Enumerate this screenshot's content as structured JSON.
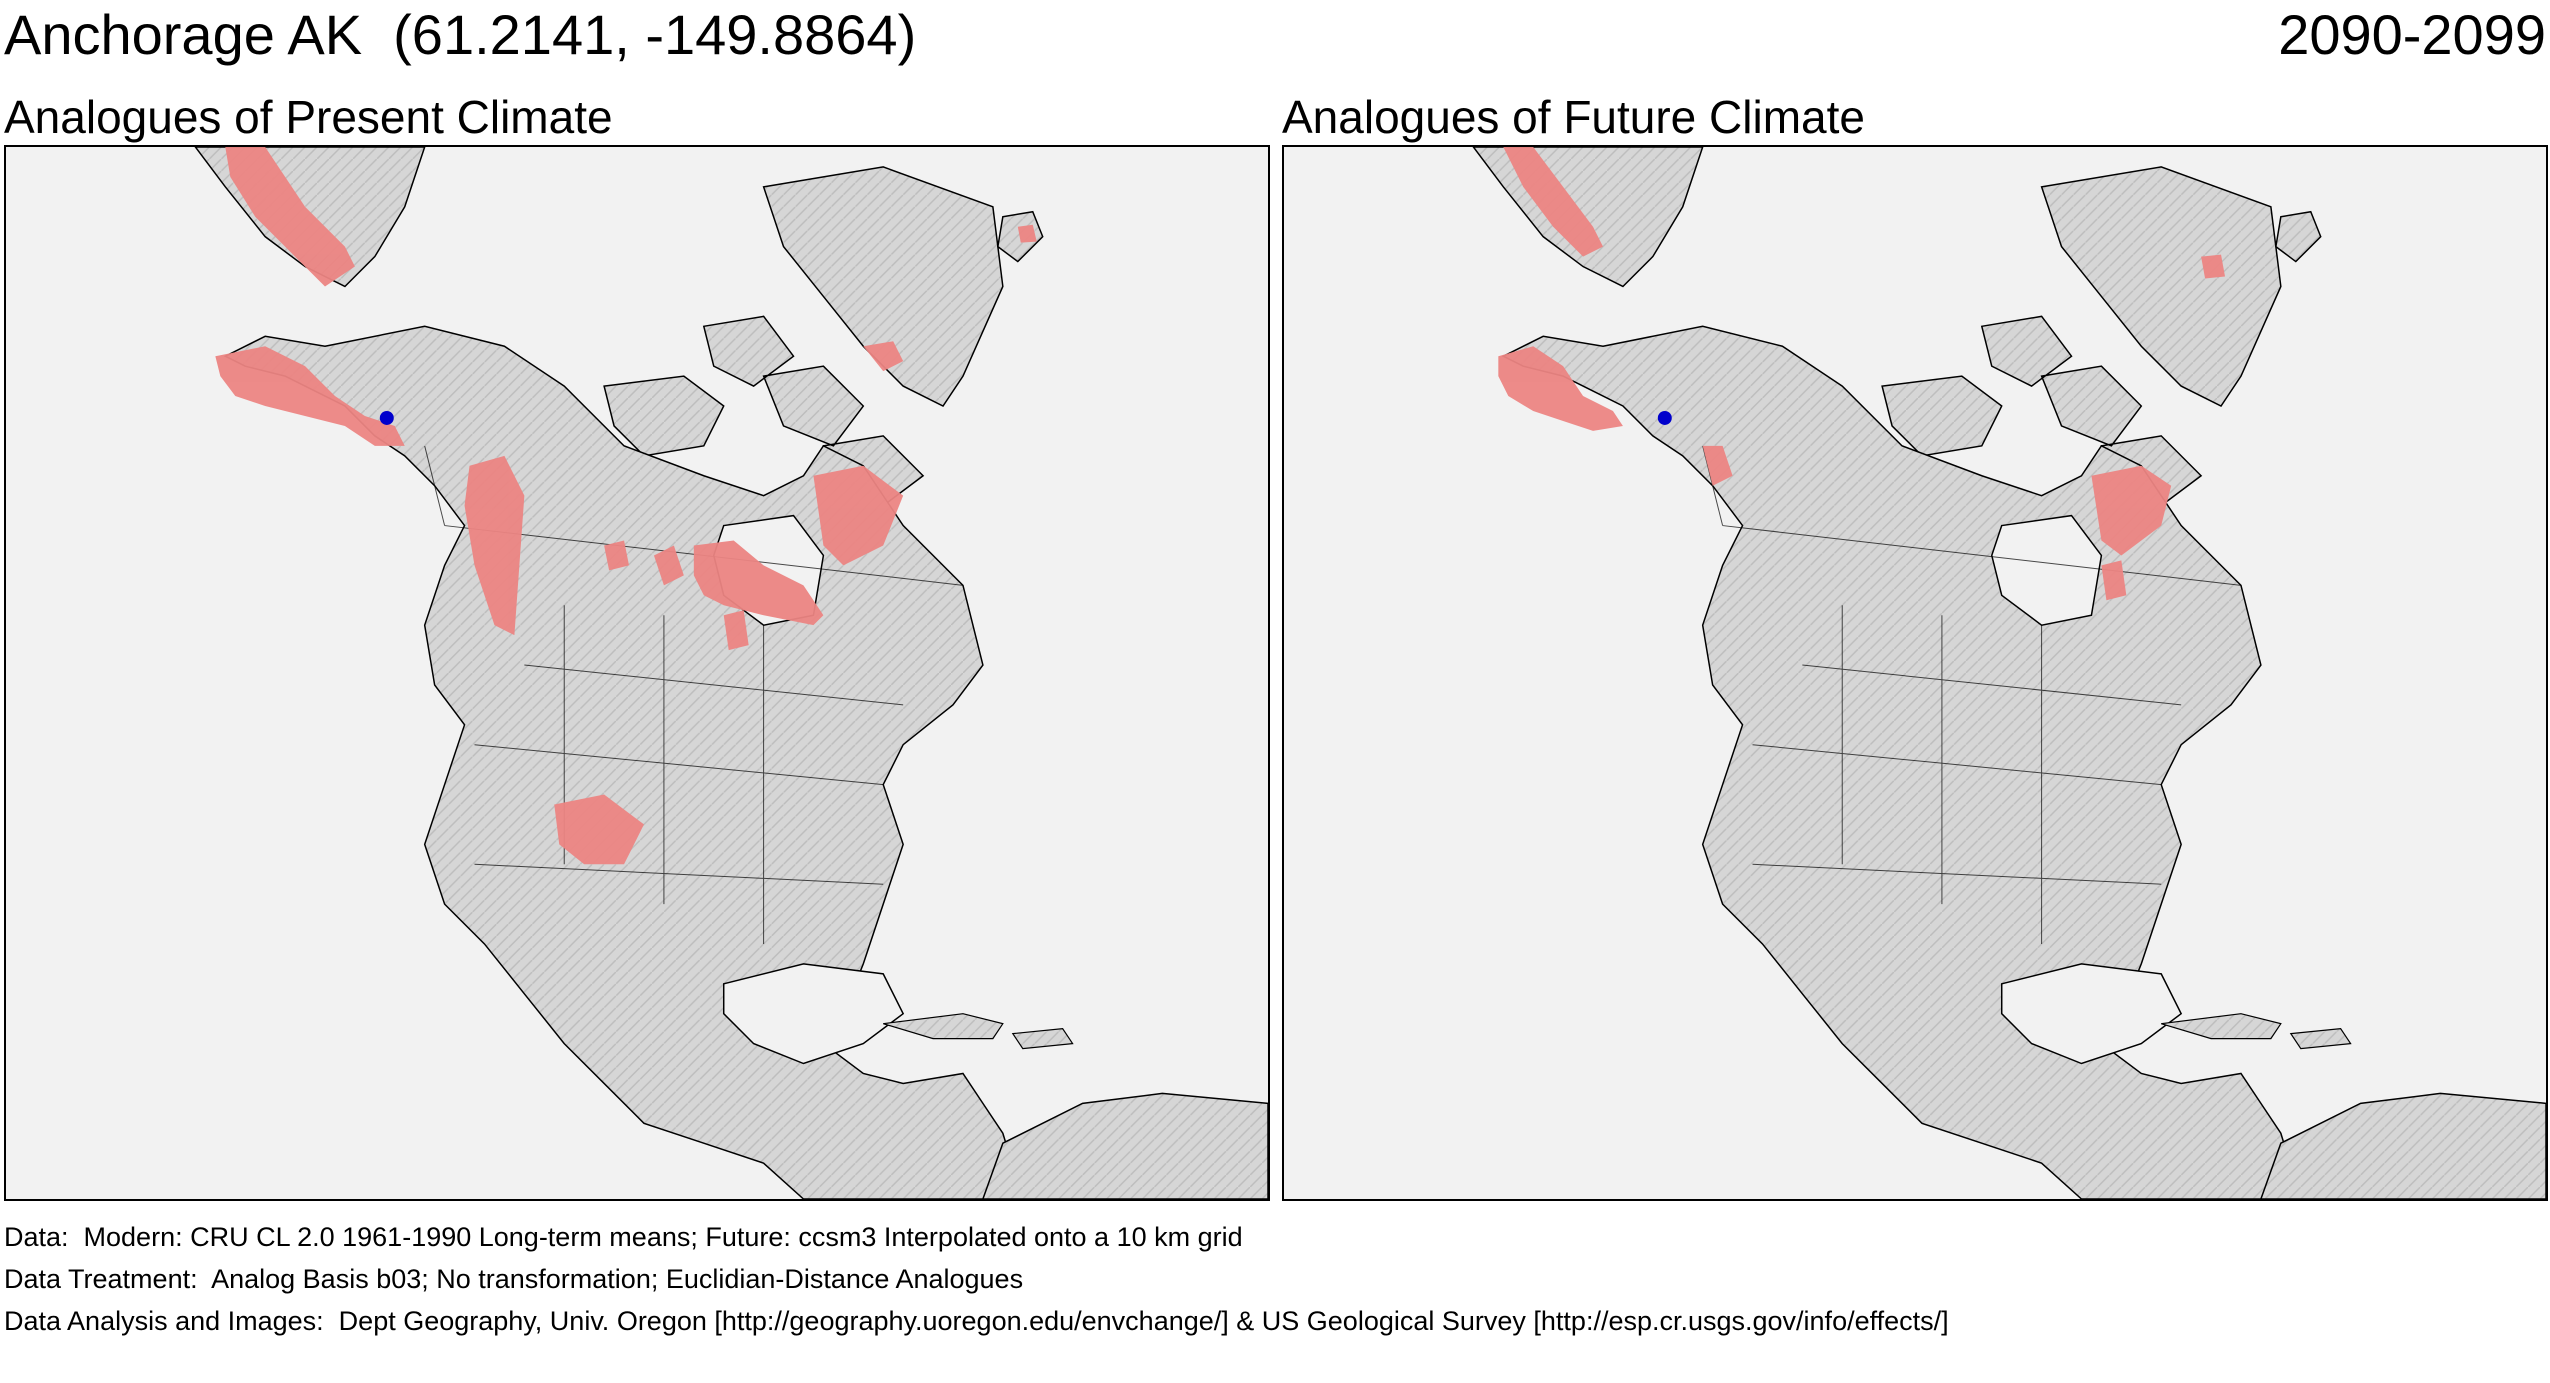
{
  "header": {
    "location": "Anchorage AK  (61.2141, -149.8864)",
    "period": "2090-2099"
  },
  "panels": [
    {
      "title": "Analogues of Present Climate"
    },
    {
      "title": "Analogues of Future Climate"
    }
  ],
  "colors": {
    "analog_fill": "#ec8583",
    "land": "#d8d8d8",
    "water": "#f2f2f2",
    "location_marker": "#0000cc"
  },
  "footer": {
    "line1": "Data:  Modern: CRU CL 2.0 1961-1990 Long-term means; Future: ccsm3 Interpolated onto a 10 km grid",
    "line2": "Data Treatment:  Analog Basis b03; No transformation; Euclidian-Distance Analogues",
    "line3": "Data Analysis and Images:  Dept Geography, Univ. Oregon [http://geography.uoregon.edu/envchange/] & US Geological Survey [http://esp.cr.usgs.gov/info/effects/]"
  }
}
